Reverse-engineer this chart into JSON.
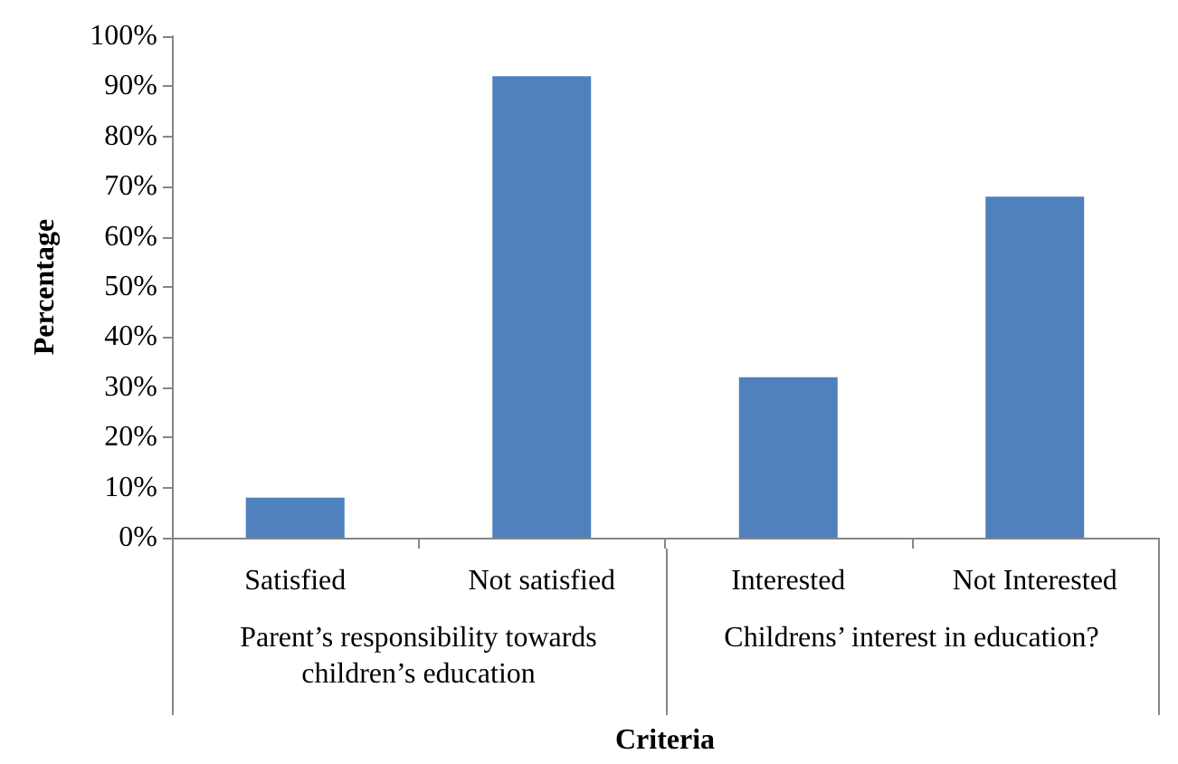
{
  "chart_data": {
    "type": "bar",
    "categories": [
      "Satisfied",
      "Not satisfied",
      "Interested",
      "Not Interested"
    ],
    "values": [
      8,
      92,
      32,
      68
    ],
    "color": "#4f81bd",
    "xlabel": "Criteria",
    "ylabel": "Percentage",
    "ylim": [
      0,
      100
    ],
    "yticks": [
      {
        "value": 0,
        "label": "0%"
      },
      {
        "value": 10,
        "label": "10%"
      },
      {
        "value": 20,
        "label": "20%"
      },
      {
        "value": 30,
        "label": "30%"
      },
      {
        "value": 40,
        "label": "40%"
      },
      {
        "value": 50,
        "label": "50%"
      },
      {
        "value": 60,
        "label": "60%"
      },
      {
        "value": 70,
        "label": "70%"
      },
      {
        "value": 80,
        "label": "80%"
      },
      {
        "value": 90,
        "label": "90%"
      },
      {
        "value": 100,
        "label": "100%"
      }
    ],
    "annotations": [
      "Parent’s responsibility towards children’s education",
      "Childrens’ interest in education?"
    ]
  }
}
